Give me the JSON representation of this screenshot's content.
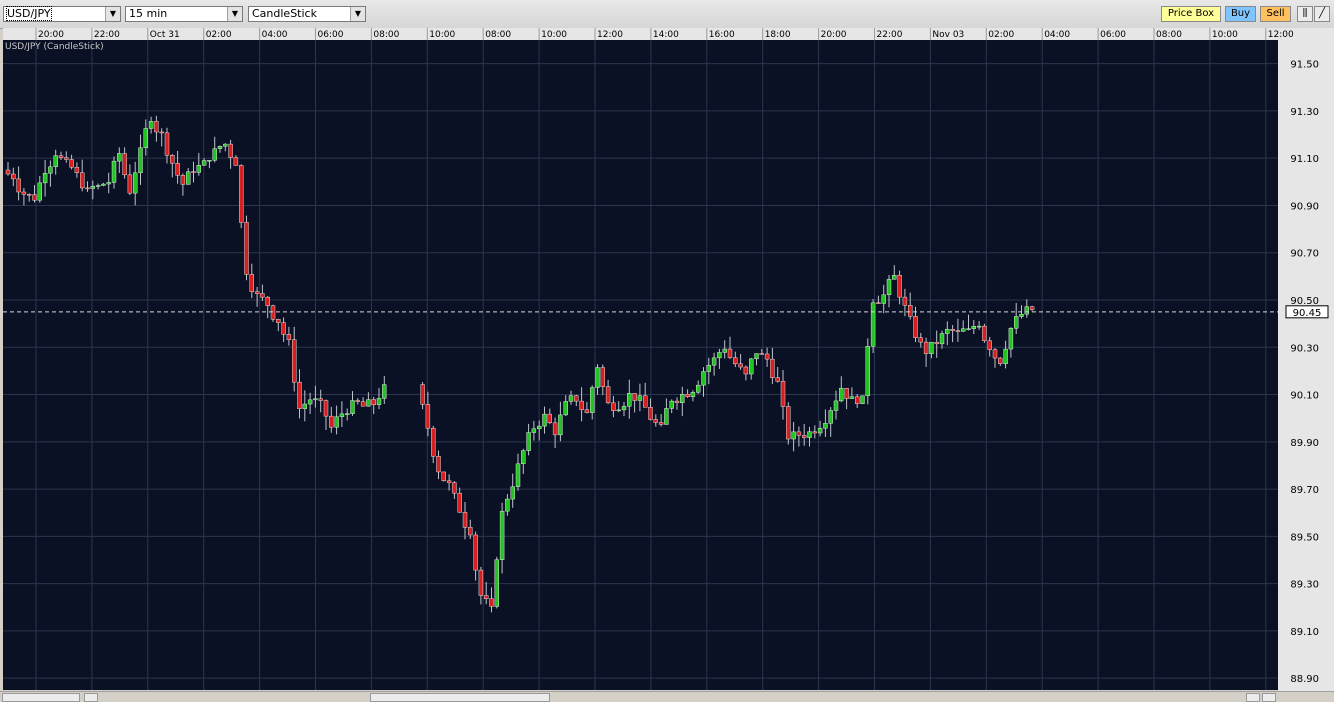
{
  "toolbar": {
    "symbol": "USD/JPY",
    "interval": "15 min",
    "chart_type": "CandleStick",
    "price_box_label": "Price Box",
    "buy_label": "Buy",
    "sell_label": "Sell"
  },
  "colors": {
    "chart_bg": "#0b1124",
    "grid": "#2a3550",
    "up": "#22c322",
    "down": "#d42020",
    "price_box_bg": "#ffff99",
    "buy_bg": "#7fc4ff",
    "sell_bg": "#ffc060"
  },
  "chart_data": {
    "type": "candlestick",
    "title": "USD/JPY (CandleStick)",
    "ylim": [
      88.85,
      91.6
    ],
    "yticks": [
      "91.50",
      "91.30",
      "91.10",
      "90.90",
      "90.70",
      "90.50",
      "90.30",
      "90.10",
      "89.90",
      "89.70",
      "89.50",
      "89.30",
      "89.10",
      "88.90"
    ],
    "current_price": "90.45",
    "xticks": [
      "20:00",
      "22:00",
      "Oct 31",
      "02:00",
      "04:00",
      "06:00",
      "08:00",
      "10:00",
      "08:00",
      "10:00",
      "12:00",
      "14:00",
      "16:00",
      "18:00",
      "20:00",
      "22:00",
      "Nov 03",
      "02:00",
      "04:00",
      "06:00",
      "08:00",
      "10:00",
      "12:00"
    ],
    "close_path": [
      91.02,
      90.95,
      90.93,
      91.05,
      91.12,
      91.08,
      91.03,
      90.96,
      90.98,
      91.0,
      91.12,
      90.96,
      91.13,
      91.27,
      91.2,
      91.08,
      90.99,
      91.05,
      91.08,
      91.13,
      91.16,
      91.08,
      90.62,
      90.52,
      90.48,
      90.41,
      90.32,
      90.04,
      90.08,
      90.06,
      89.96,
      90.02,
      90.06,
      90.05,
      90.06,
      90.13,
      89.96,
      89.78,
      89.72,
      89.61,
      89.52,
      89.25,
      89.19,
      89.6,
      89.72,
      89.86,
      89.96,
      90.01,
      89.94,
      90.06,
      90.08,
      90.02,
      90.22,
      90.06,
      90.05,
      90.1,
      90.08,
      90.0,
      89.96,
      90.08,
      90.1,
      90.12,
      90.2,
      90.25,
      90.3,
      90.23,
      90.18,
      90.28,
      90.25,
      90.15,
      89.92,
      89.93,
      89.94,
      89.97,
      90.04,
      90.13,
      90.08,
      90.08,
      90.5,
      90.52,
      90.6,
      90.47,
      90.35,
      90.28,
      90.32,
      90.37,
      90.36,
      90.37,
      90.4,
      90.3,
      90.24,
      90.38,
      90.44,
      90.46
    ]
  }
}
